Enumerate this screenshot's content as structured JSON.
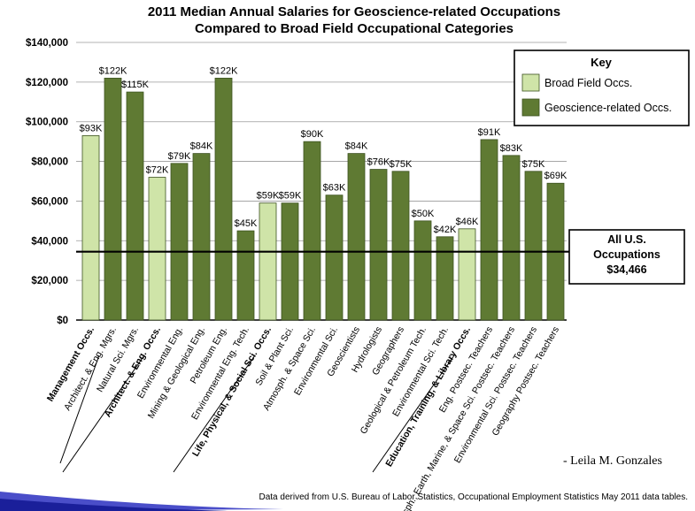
{
  "chart_data": {
    "type": "bar",
    "title_line1": "2011 Median Annual Salaries for Geoscience-related Occupations",
    "title_line2": "Compared to Broad Field Occupational Categories",
    "ylim": [
      0,
      140000
    ],
    "yticks": [
      {
        "value": 0,
        "label": "$0"
      },
      {
        "value": 20000,
        "label": "$20,000"
      },
      {
        "value": 40000,
        "label": "$40,000"
      },
      {
        "value": 60000,
        "label": "$60,000"
      },
      {
        "value": 80000,
        "label": "$80,000"
      },
      {
        "value": 100000,
        "label": "$100,000"
      },
      {
        "value": 120000,
        "label": "$120,000"
      },
      {
        "value": 140000,
        "label": "$140,000"
      }
    ],
    "grid": true,
    "legend": {
      "title": "Key",
      "placement": "top-right",
      "entries": [
        {
          "name": "Broad Field Occs.",
          "color": "#cfe4a8"
        },
        {
          "name": "Geoscience-related Occs.",
          "color": "#5f7a33"
        }
      ]
    },
    "colors": {
      "broad": "#cfe4a8",
      "geo": "#5f7a33",
      "edge": "#3d5220"
    },
    "reference_line": {
      "value": 34466,
      "label_line1": "All U.S.",
      "label_line2": "Occupations",
      "label_line3": "$34,466"
    },
    "bars": [
      {
        "category": "Management Occs.",
        "value": 93000,
        "label": "$93K",
        "group": "broad"
      },
      {
        "category": "Architect. & Eng. Mgrs.",
        "value": 122000,
        "label": "$122K",
        "group": "geo"
      },
      {
        "category": "Natural Sci. Mgrs.",
        "value": 115000,
        "label": "$115K",
        "group": "geo"
      },
      {
        "category": "Architect. & Eng. Occs.",
        "value": 72000,
        "label": "$72K",
        "group": "broad"
      },
      {
        "category": "Environmental Eng.",
        "value": 79000,
        "label": "$79K",
        "group": "geo"
      },
      {
        "category": "Mining & Geological Eng.",
        "value": 84000,
        "label": "$84K",
        "group": "geo"
      },
      {
        "category": "Petroleum Eng.",
        "value": 122000,
        "label": "$122K",
        "group": "geo"
      },
      {
        "category": "Environmental Eng. Tech.",
        "value": 45000,
        "label": "$45K",
        "group": "geo"
      },
      {
        "category": "Life, Physical, & Social Sci. Occs.",
        "value": 59000,
        "label": "$59K",
        "group": "broad"
      },
      {
        "category": "Soil & Plant Sci.",
        "value": 59000,
        "label": "$59K",
        "group": "geo"
      },
      {
        "category": "Atmosph. & Space Sci.",
        "value": 90000,
        "label": "$90K",
        "group": "geo"
      },
      {
        "category": "Environmental Sci.",
        "value": 63000,
        "label": "$63K",
        "group": "geo"
      },
      {
        "category": "Geoscientists",
        "value": 84000,
        "label": "$84K",
        "group": "geo"
      },
      {
        "category": "Hydrologists",
        "value": 76000,
        "label": "$76K",
        "group": "geo"
      },
      {
        "category": "Geographers",
        "value": 75000,
        "label": "$75K",
        "group": "geo"
      },
      {
        "category": "Geological & Petroleum Tech.",
        "value": 50000,
        "label": "$50K",
        "group": "geo"
      },
      {
        "category": "Environmental Sci. Tech.",
        "value": 42000,
        "label": "$42K",
        "group": "geo"
      },
      {
        "category": "Education, Training, & Library Occs.",
        "value": 46000,
        "label": "$46K",
        "group": "broad"
      },
      {
        "category": "Eng. Postsec. Teachers",
        "value": 91000,
        "label": "$91K",
        "group": "geo"
      },
      {
        "category": "Atmosph., Earth, Marine, & Space Sci. Postsec. Teachers",
        "value": 83000,
        "label": "$83K",
        "group": "geo"
      },
      {
        "category": "Environmental Sci. Postsec. Teachers",
        "value": 75000,
        "label": "$75K",
        "group": "geo"
      },
      {
        "category": "Geography Postsec. Teachers",
        "value": 69000,
        "label": "$69K",
        "group": "geo"
      }
    ]
  },
  "author": "- Leila M. Gonzales",
  "source": "Data derived from U.S. Bureau of Labor Statistics, Occupational Employment Statistics May 2011 data tables."
}
